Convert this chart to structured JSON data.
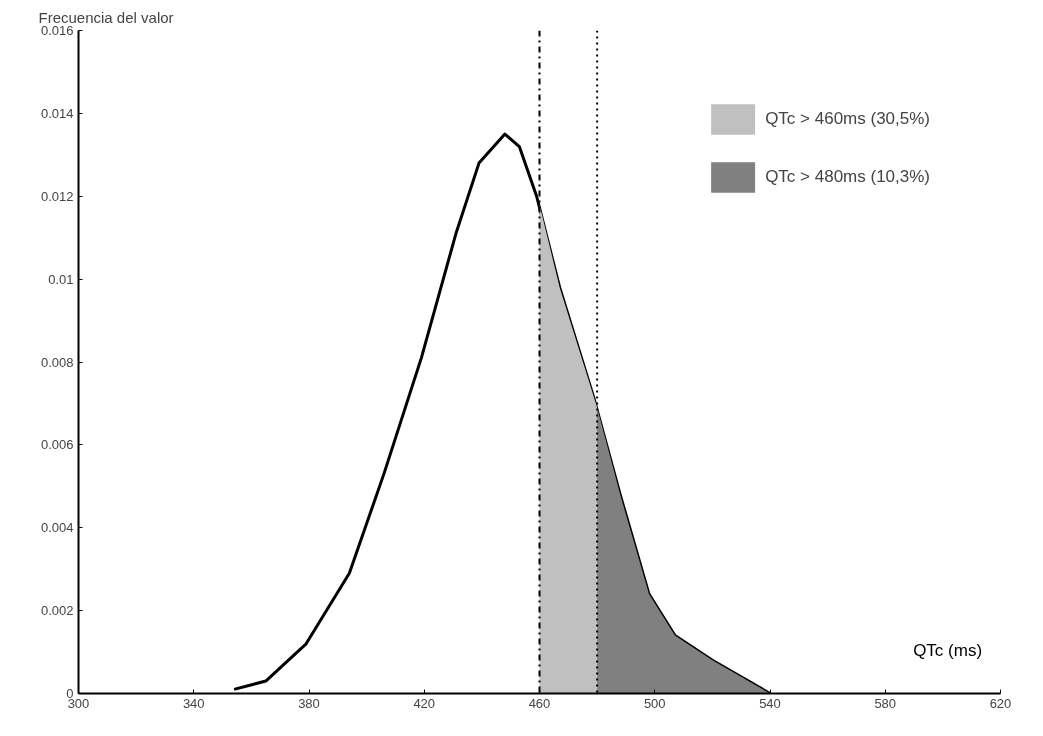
{
  "chart_data": {
    "type": "line",
    "ylabel": "Frecuencia del valor",
    "xlabel": "QTc (ms)",
    "xlim": [
      300,
      620
    ],
    "xticks": [
      300,
      340,
      380,
      420,
      460,
      500,
      540,
      580,
      620
    ],
    "ylim": [
      0,
      0.016
    ],
    "yticks": [
      0,
      0.002,
      0.004,
      0.006,
      0.008,
      0.01,
      0.012,
      0.014,
      0.016
    ],
    "grid": false,
    "legend": "top right",
    "marker": "none",
    "line_style": "solid",
    "series": [
      {
        "color": "#000000",
        "x": [
          354,
          365,
          379,
          394,
          406,
          419,
          431,
          439,
          448,
          453,
          459,
          467,
          479,
          488,
          498,
          507,
          520,
          540
        ],
        "values": [
          0.0001,
          0.0003,
          0.0012,
          0.0029,
          0.0053,
          0.0081,
          0.0111,
          0.0128,
          0.0135,
          0.0132,
          0.012,
          0.0098,
          0.0071,
          0.0048,
          0.0024,
          0.0014,
          0.0008,
          0
        ]
      },
      {
        "type": "area",
        "name": "QTc > 460ms (30,5%)",
        "color": "#c0c0c0",
        "x": [
          460,
          467,
          480
        ],
        "values": [
          0.0118,
          0.0098,
          0.0069
        ]
      },
      {
        "type": "area",
        "name": "QTc > 480ms (10,3%)",
        "color": "#808080",
        "x": [
          480,
          488,
          498,
          507,
          520,
          540
        ],
        "values": [
          0.0069,
          0.0048,
          0.0024,
          0.0014,
          0.0008,
          0
        ]
      }
    ],
    "ref_lines": [
      {
        "axis": "x",
        "value": 460,
        "line_style": "dashdot",
        "color": "#000000"
      },
      {
        "axis": "x",
        "value": 480,
        "line_style": "dotted",
        "color": "#000000"
      }
    ]
  }
}
